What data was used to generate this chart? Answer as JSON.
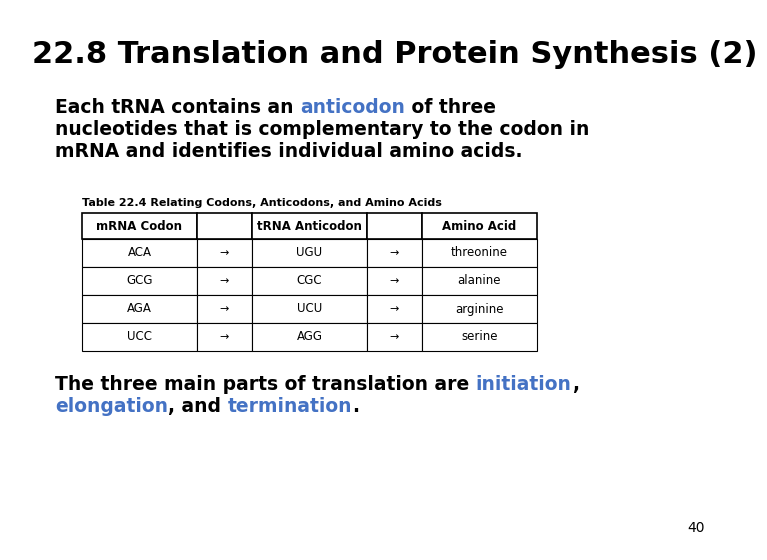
{
  "title": "22.8 Translation and Protein Synthesis (2)",
  "title_fontsize": 22,
  "slide_bg": "#ffffff",
  "body_fontsize": 13.5,
  "table_caption": "Table 22.4 Relating Codons, Anticodons, and Amino Acids",
  "table_caption_fontsize": 8,
  "table_col_headers": [
    "mRNA Codon",
    "",
    "tRNA Anticodon",
    "",
    "Amino Acid"
  ],
  "table_rows": [
    [
      "ACA",
      "→",
      "UGU",
      "→",
      "threonine"
    ],
    [
      "GCG",
      "→",
      "CGC",
      "→",
      "alanine"
    ],
    [
      "AGA",
      "→",
      "UCU",
      "→",
      "arginine"
    ],
    [
      "UCC",
      "→",
      "AGG",
      "→",
      "serine"
    ]
  ],
  "page_number": "40",
  "blue_color": "#4472c4",
  "black_color": "#000000"
}
